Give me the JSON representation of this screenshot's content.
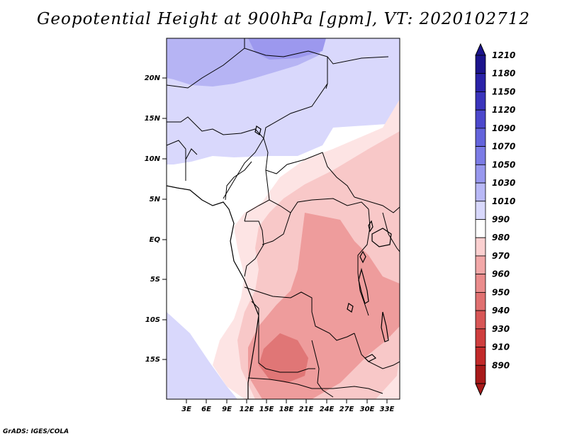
{
  "title": "Geopotential Height at 900hPa [gpm], VT: 2020102712",
  "credit": "GrADS: IGES/COLA",
  "map": {
    "variable": "Geopotential Height",
    "level": "900hPa",
    "units": "gpm",
    "valid_time": "2020102712",
    "lat_labels": [
      "20N",
      "15N",
      "10N",
      "5N",
      "EQ",
      "5S",
      "10S",
      "15S"
    ],
    "lon_labels": [
      "3E",
      "6E",
      "9E",
      "12E",
      "15E",
      "18E",
      "21E",
      "24E",
      "27E",
      "30E",
      "33E"
    ]
  },
  "colorbar": {
    "levels": [
      "1210",
      "1180",
      "1150",
      "1120",
      "1090",
      "1070",
      "1050",
      "1030",
      "1010",
      "990",
      "980",
      "970",
      "960",
      "950",
      "940",
      "930",
      "910",
      "890"
    ],
    "colors": [
      "#1c148c",
      "#2a22a8",
      "#3a34bc",
      "#4c48cc",
      "#6464dc",
      "#7c7ce6",
      "#9898ee",
      "#b8b8f6",
      "#d8d8fc",
      "#ffffff",
      "#fbd0d0",
      "#f2a8a8",
      "#ea8c8c",
      "#e07070",
      "#d85656",
      "#cf3e3e",
      "#c22a2a",
      "#a81a1a"
    ]
  },
  "palette": {
    "blue_light": "#d9d8fc",
    "blue_mid": "#b6b4f4",
    "blue_deep": "#9c98ee",
    "pink_light": "#fde4e4",
    "pink": "#f8c8c8",
    "red_mid": "#ee9c9c",
    "red_deep": "#e07676"
  }
}
